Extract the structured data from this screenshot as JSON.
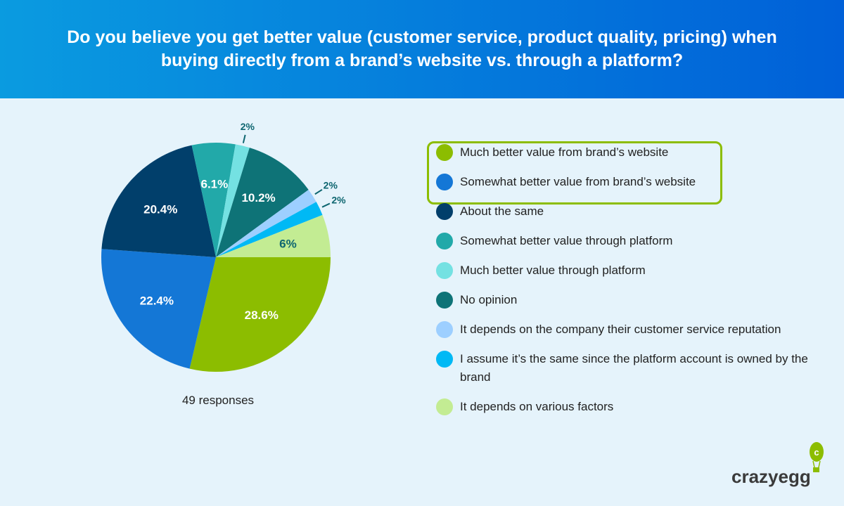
{
  "header": {
    "title": "Do you believe you get better value (customer service, product quality, pricing) when buying directly from a brand’s website vs. through a platform?"
  },
  "chart_data": {
    "type": "pie",
    "title": "Do you believe you get better value (customer service, product quality, pricing) when buying directly from a brand’s website vs. through a platform?",
    "categories": [
      "Much better value from brand’s website",
      "Somewhat better value from brand’s website",
      "About the same",
      "Somewhat better value through platform",
      "Much better value through platform",
      "No opinion",
      "It depends on the company their customer service reputation",
      "I assume it’s the same since the platform account is owned by the brand",
      "It depends on various factors"
    ],
    "values": [
      28.6,
      22.4,
      20.4,
      6.1,
      2,
      10.2,
      2,
      2,
      6
    ],
    "labels": [
      "28.6%",
      "22.4%",
      "20.4%",
      "6.1%",
      "2%",
      "10.2%",
      "2%",
      "2%",
      "6%"
    ],
    "colors": [
      "#8cbd00",
      "#1477d6",
      "#013f6b",
      "#22a9a9",
      "#74e1e2",
      "#0e7377",
      "#9dcfff",
      "#00b9f5",
      "#c3ec93"
    ],
    "start": "east, clockwise",
    "legend_placement": "right",
    "highlighted": [
      "Much better value from brand’s website",
      "Somewhat better value from brand’s website"
    ]
  },
  "footer": {
    "responses": "49 responses",
    "brand": "crazyegg"
  }
}
